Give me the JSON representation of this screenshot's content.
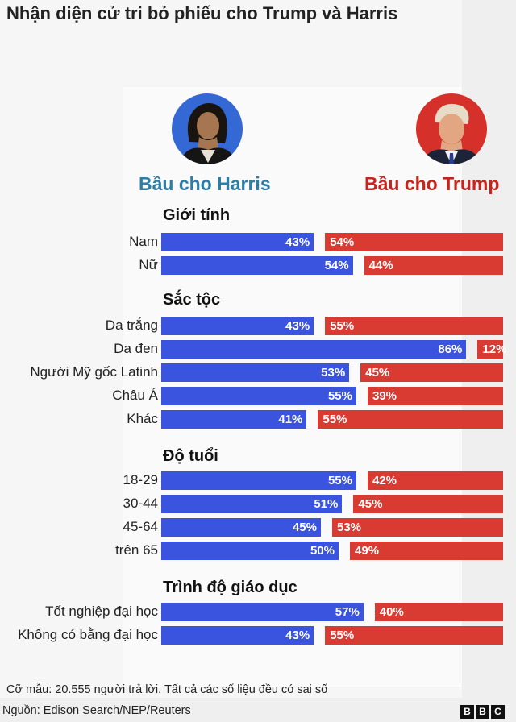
{
  "title": "Nhận diện cử tri bỏ phiếu cho Trump và Harris",
  "harris_label": "Bầu cho Harris",
  "trump_label": "Bầu cho Trump",
  "colors": {
    "harris": "#3a54e0",
    "trump": "#d93a32",
    "harris_text": "#2d7ea6",
    "trump_text": "#c8241c"
  },
  "chart_data": {
    "type": "bar",
    "orientation": "horizontal-diverging",
    "series": [
      {
        "name": "Bầu cho Harris",
        "color": "#3a54e0"
      },
      {
        "name": "Bầu cho Trump",
        "color": "#d93a32"
      }
    ],
    "groups": [
      {
        "title": "Giới tính",
        "rows": [
          {
            "label": "Nam",
            "harris": 43,
            "trump": 54
          },
          {
            "label": "Nữ",
            "harris": 54,
            "trump": 44
          }
        ]
      },
      {
        "title": "Sắc tộc",
        "rows": [
          {
            "label": "Da trắng",
            "harris": 43,
            "trump": 55
          },
          {
            "label": "Da đen",
            "harris": 86,
            "trump": 12
          },
          {
            "label": "Người Mỹ gốc Latinh",
            "harris": 53,
            "trump": 45
          },
          {
            "label": "Châu Á",
            "harris": 55,
            "trump": 39
          },
          {
            "label": "Khác",
            "harris": 41,
            "trump": 55
          }
        ]
      },
      {
        "title": "Độ tuổi",
        "rows": [
          {
            "label": "18-29",
            "harris": 55,
            "trump": 42
          },
          {
            "label": "30-44",
            "harris": 51,
            "trump": 45
          },
          {
            "label": "45-64",
            "harris": 45,
            "trump": 53
          },
          {
            "label": "trên 65",
            "harris": 50,
            "trump": 49
          }
        ]
      },
      {
        "title": "Trình độ giáo dục",
        "rows": [
          {
            "label": "Tốt nghiệp đại học",
            "harris": 57,
            "trump": 40
          },
          {
            "label": "Không có bằng đại học",
            "harris": 43,
            "trump": 55
          }
        ]
      }
    ],
    "xlim": [
      0,
      100
    ]
  },
  "note": "Cỡ mẫu: 20.555 người trả lời. Tất cả các số liệu đều có sai số",
  "source": "Nguồn: Edison Search/NEP/Reuters",
  "logo": [
    "B",
    "B",
    "C"
  ]
}
